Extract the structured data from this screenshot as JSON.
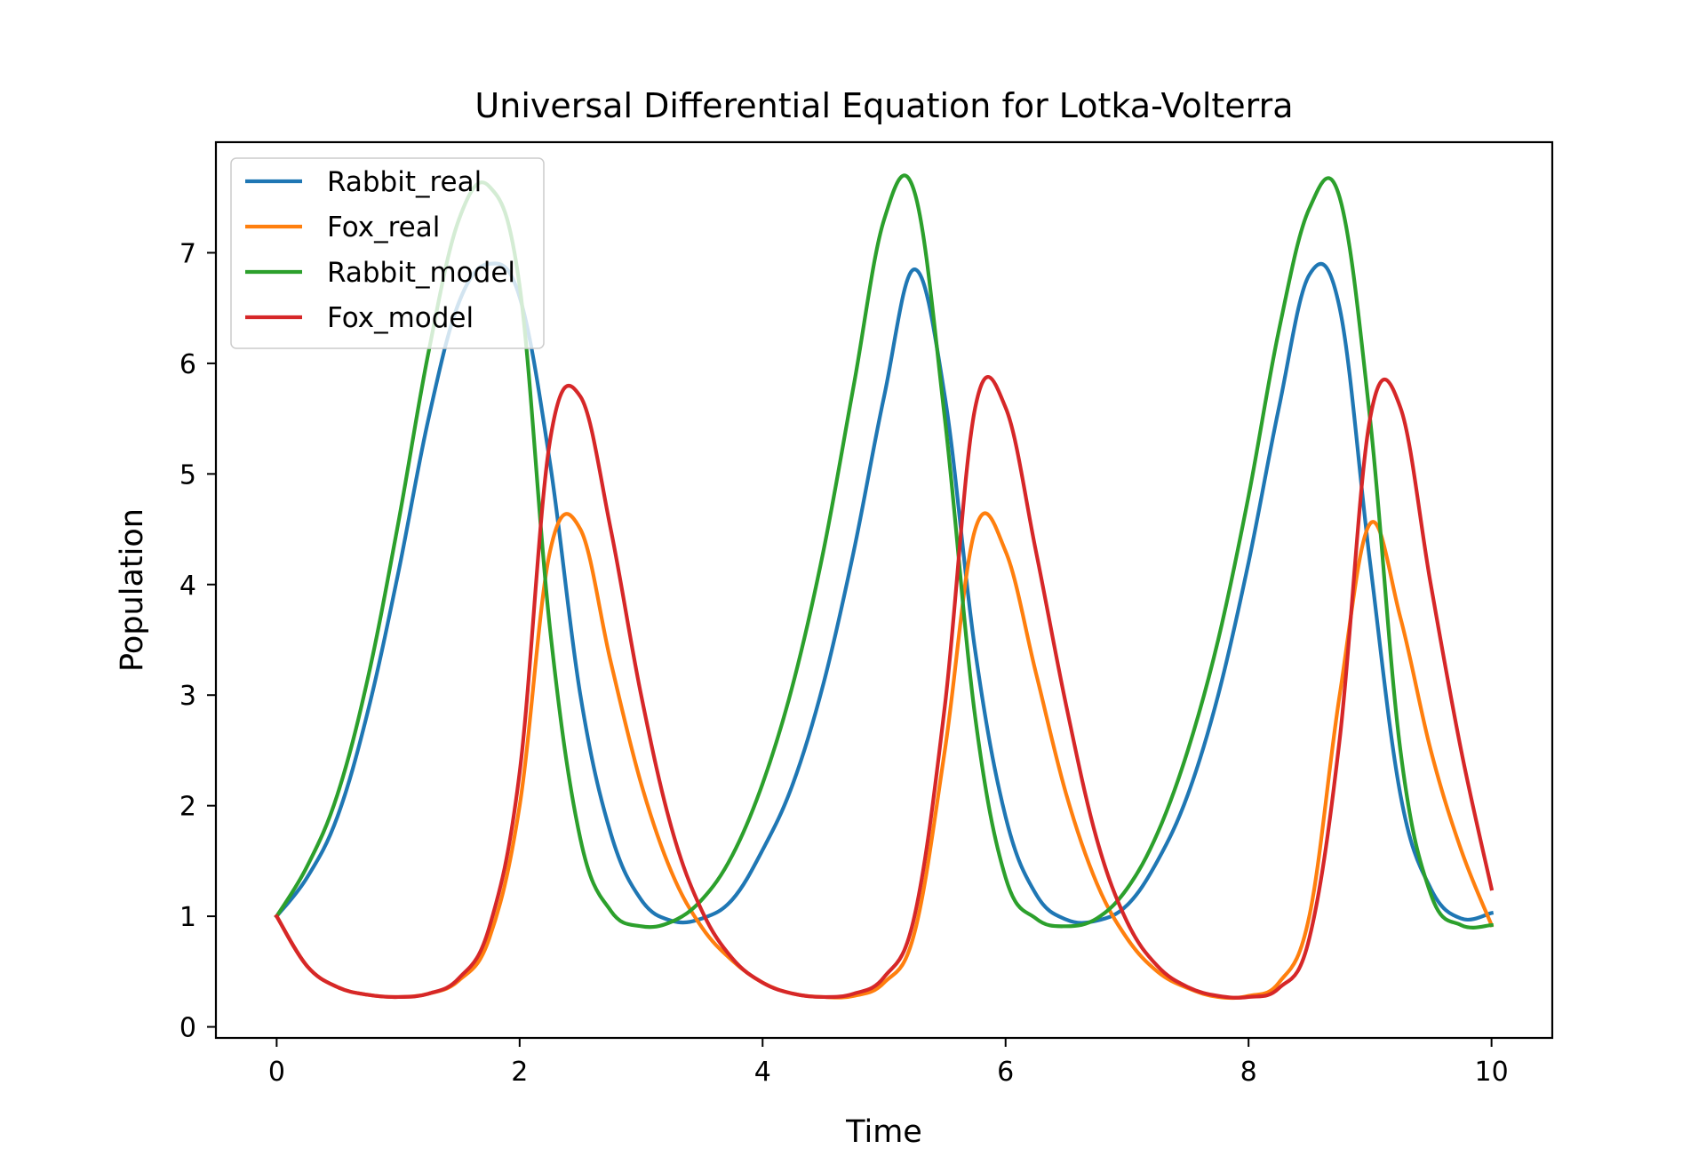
{
  "chart_data": {
    "type": "line",
    "title": "Universal Differential Equation for Lotka-Volterra",
    "xlabel": "Time",
    "ylabel": "Population",
    "xlim": [
      -0.5,
      10.5
    ],
    "ylim": [
      -0.1,
      8.0
    ],
    "xticks": [
      0,
      2,
      4,
      6,
      8,
      10
    ],
    "yticks": [
      0,
      1,
      2,
      3,
      4,
      5,
      6,
      7
    ],
    "grid": false,
    "legend_position": "top-left",
    "x": [
      0,
      0.25,
      0.5,
      0.75,
      1.0,
      1.25,
      1.5,
      1.75,
      2.0,
      2.25,
      2.5,
      2.75,
      3.0,
      3.25,
      3.5,
      3.75,
      4.0,
      4.25,
      4.5,
      4.75,
      5.0,
      5.25,
      5.5,
      5.75,
      6.0,
      6.25,
      6.5,
      6.75,
      7.0,
      7.25,
      7.5,
      7.75,
      8.0,
      8.25,
      8.5,
      8.75,
      9.0,
      9.25,
      9.5,
      9.75,
      10.0
    ],
    "series": [
      {
        "name": "Rabbit_real",
        "color": "#1f77b4",
        "values": [
          1.0,
          1.35,
          1.9,
          2.85,
          4.1,
          5.5,
          6.55,
          6.9,
          6.6,
          5.1,
          3.0,
          1.75,
          1.15,
          0.96,
          0.98,
          1.15,
          1.6,
          2.2,
          3.1,
          4.3,
          5.7,
          6.85,
          5.7,
          3.4,
          1.9,
          1.2,
          0.97,
          0.96,
          1.1,
          1.5,
          2.1,
          3.0,
          4.2,
          5.6,
          6.8,
          6.5,
          4.2,
          2.1,
          1.25,
          0.98,
          1.03
        ]
      },
      {
        "name": "Fox_real",
        "color": "#ff7f0e",
        "values": [
          1.0,
          0.55,
          0.36,
          0.29,
          0.27,
          0.3,
          0.42,
          0.8,
          2.0,
          4.3,
          4.5,
          3.3,
          2.2,
          1.4,
          0.9,
          0.6,
          0.4,
          0.3,
          0.27,
          0.28,
          0.4,
          0.85,
          2.5,
          4.5,
          4.3,
          3.2,
          2.1,
          1.3,
          0.8,
          0.5,
          0.35,
          0.27,
          0.28,
          0.4,
          1.0,
          3.0,
          4.55,
          3.7,
          2.5,
          1.6,
          0.92
        ]
      },
      {
        "name": "Rabbit_model",
        "color": "#2ca02c",
        "values": [
          1.0,
          1.45,
          2.1,
          3.15,
          4.55,
          6.1,
          7.3,
          7.6,
          6.7,
          3.6,
          1.7,
          1.05,
          0.91,
          0.95,
          1.15,
          1.55,
          2.2,
          3.1,
          4.3,
          5.8,
          7.3,
          7.55,
          5.5,
          2.8,
          1.35,
          0.98,
          0.91,
          0.98,
          1.25,
          1.75,
          2.5,
          3.5,
          4.8,
          6.3,
          7.4,
          7.5,
          5.5,
          2.5,
          1.2,
          0.92,
          0.92
        ]
      },
      {
        "name": "Fox_model",
        "color": "#d62728",
        "values": [
          1.0,
          0.55,
          0.36,
          0.29,
          0.27,
          0.3,
          0.44,
          0.9,
          2.3,
          5.3,
          5.7,
          4.5,
          3.0,
          1.8,
          1.05,
          0.62,
          0.4,
          0.3,
          0.27,
          0.3,
          0.45,
          1.0,
          2.9,
          5.6,
          5.6,
          4.3,
          2.9,
          1.7,
          0.95,
          0.55,
          0.36,
          0.28,
          0.27,
          0.35,
          0.8,
          2.6,
          5.5,
          5.6,
          4.0,
          2.5,
          1.25
        ]
      }
    ]
  }
}
